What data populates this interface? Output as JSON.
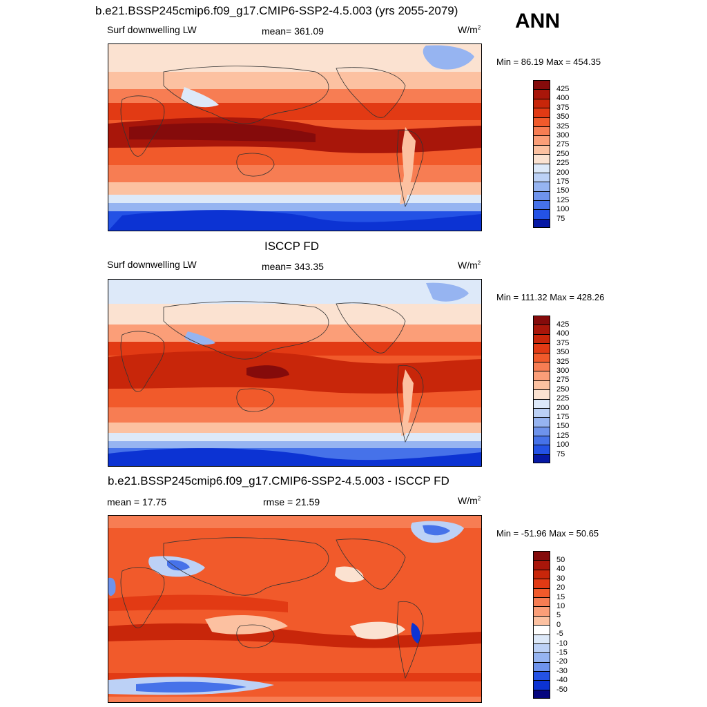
{
  "header": {
    "ann_label": "ANN"
  },
  "colors": {
    "warm": [
      "#fbe2d1",
      "#fcc1a1",
      "#fb9e78",
      "#f77d53",
      "#f15a2b",
      "#e23a14",
      "#c8260a",
      "#a8160a",
      "#850b0b"
    ],
    "cool": [
      "#dde9f9",
      "#bcd1f6",
      "#96b4f1",
      "#6e93ec",
      "#4672e9",
      "#2452e5",
      "#0c33d3",
      "#0618a4",
      "#06067e"
    ]
  },
  "panels": [
    {
      "id": "top",
      "title": "b.e21.BSSP245cmip6.f09_g17.CMIP6-SSP2-4.5.003 (yrs 2055-2079)",
      "left_label": "Surf downwelling LW",
      "center_label": "mean= 361.09",
      "units": "W/m",
      "units_sup": "2",
      "minmax": "Min =  86.19 Max = 454.35",
      "colorbar_labels": [
        "425",
        "400",
        "375",
        "350",
        "325",
        "300",
        "275",
        "250",
        "225",
        "200",
        "175",
        "150",
        "125",
        "100",
        "75"
      ]
    },
    {
      "id": "middle",
      "title": "ISCCP FD",
      "left_label": "Surf downwelling LW",
      "center_label": "mean= 343.35",
      "units": "W/m",
      "units_sup": "2",
      "minmax": "Min = 111.32 Max = 428.26",
      "colorbar_labels": [
        "425",
        "400",
        "375",
        "350",
        "325",
        "300",
        "275",
        "250",
        "225",
        "200",
        "175",
        "150",
        "125",
        "100",
        "75"
      ]
    },
    {
      "id": "bottom",
      "title": "b.e21.BSSP245cmip6.f09_g17.CMIP6-SSP2-4.5.003 - ISCCP FD",
      "left_label": "mean =  17.75",
      "center_label": "rmse =  21.59",
      "units": "W/m",
      "units_sup": "2",
      "minmax": "Min = -51.96 Max =  50.65",
      "colorbar_labels": [
        "50",
        "40",
        "30",
        "20",
        "15",
        "10",
        "5",
        "0",
        "-5",
        "-10",
        "-15",
        "-20",
        "-30",
        "-40",
        "-50"
      ]
    }
  ]
}
